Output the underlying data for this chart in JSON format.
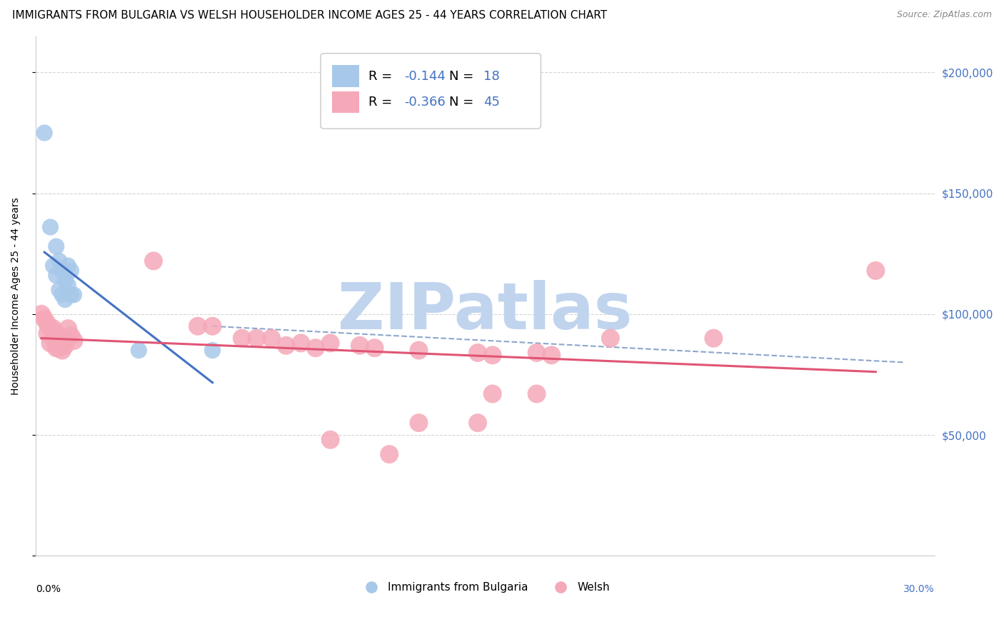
{
  "title": "IMMIGRANTS FROM BULGARIA VS WELSH HOUSEHOLDER INCOME AGES 25 - 44 YEARS CORRELATION CHART",
  "source": "Source: ZipAtlas.com",
  "ylabel": "Householder Income Ages 25 - 44 years",
  "yticks": [
    0,
    50000,
    100000,
    150000,
    200000
  ],
  "ytick_labels": [
    "",
    "$50,000",
    "$100,000",
    "$150,000",
    "$200,000"
  ],
  "ylim": [
    0,
    215000
  ],
  "xlim_min": 0.0,
  "xlim_max": 0.305,
  "watermark_text": "ZIPatlas",
  "watermark_color": "#c0d4ee",
  "legend1_r": "-0.144",
  "legend1_n": "18",
  "legend2_r": "-0.366",
  "legend2_n": "45",
  "blue_color": "#a8c8ea",
  "pink_color": "#f5a8b8",
  "blue_line_color": "#4472c4",
  "pink_line_color": "#e05575",
  "dash_line_color": "#7090c0",
  "grid_color": "#d0d0d0",
  "accent_color": "#4472c4",
  "blue_scatter": [
    [
      0.003,
      175000
    ],
    [
      0.005,
      136000
    ],
    [
      0.006,
      120000
    ],
    [
      0.007,
      128000
    ],
    [
      0.007,
      116000
    ],
    [
      0.008,
      122000
    ],
    [
      0.008,
      110000
    ],
    [
      0.009,
      118000
    ],
    [
      0.009,
      108000
    ],
    [
      0.01,
      114000
    ],
    [
      0.01,
      106000
    ],
    [
      0.011,
      112000
    ],
    [
      0.011,
      120000
    ],
    [
      0.012,
      118000
    ],
    [
      0.012,
      108000
    ],
    [
      0.013,
      108000
    ],
    [
      0.035,
      85000
    ],
    [
      0.06,
      85000
    ]
  ],
  "pink_scatter": [
    [
      0.002,
      100000
    ],
    [
      0.003,
      98000
    ],
    [
      0.004,
      96000
    ],
    [
      0.004,
      92000
    ],
    [
      0.005,
      94000
    ],
    [
      0.005,
      88000
    ],
    [
      0.006,
      94000
    ],
    [
      0.006,
      90000
    ],
    [
      0.007,
      92000
    ],
    [
      0.007,
      86000
    ],
    [
      0.008,
      90000
    ],
    [
      0.008,
      86000
    ],
    [
      0.009,
      90000
    ],
    [
      0.009,
      85000
    ],
    [
      0.01,
      90000
    ],
    [
      0.01,
      87000
    ],
    [
      0.011,
      94000
    ],
    [
      0.012,
      91000
    ],
    [
      0.013,
      89000
    ],
    [
      0.04,
      122000
    ],
    [
      0.055,
      95000
    ],
    [
      0.06,
      95000
    ],
    [
      0.07,
      90000
    ],
    [
      0.075,
      90000
    ],
    [
      0.08,
      90000
    ],
    [
      0.085,
      87000
    ],
    [
      0.09,
      88000
    ],
    [
      0.095,
      86000
    ],
    [
      0.1,
      88000
    ],
    [
      0.11,
      87000
    ],
    [
      0.115,
      86000
    ],
    [
      0.13,
      85000
    ],
    [
      0.15,
      84000
    ],
    [
      0.155,
      83000
    ],
    [
      0.17,
      84000
    ],
    [
      0.175,
      83000
    ],
    [
      0.195,
      90000
    ],
    [
      0.23,
      90000
    ],
    [
      0.155,
      67000
    ],
    [
      0.17,
      67000
    ],
    [
      0.13,
      55000
    ],
    [
      0.15,
      55000
    ],
    [
      0.1,
      48000
    ],
    [
      0.12,
      42000
    ],
    [
      0.285,
      118000
    ]
  ],
  "title_fontsize": 11,
  "axis_label_fontsize": 10,
  "tick_fontsize": 10,
  "legend_fontsize": 13
}
